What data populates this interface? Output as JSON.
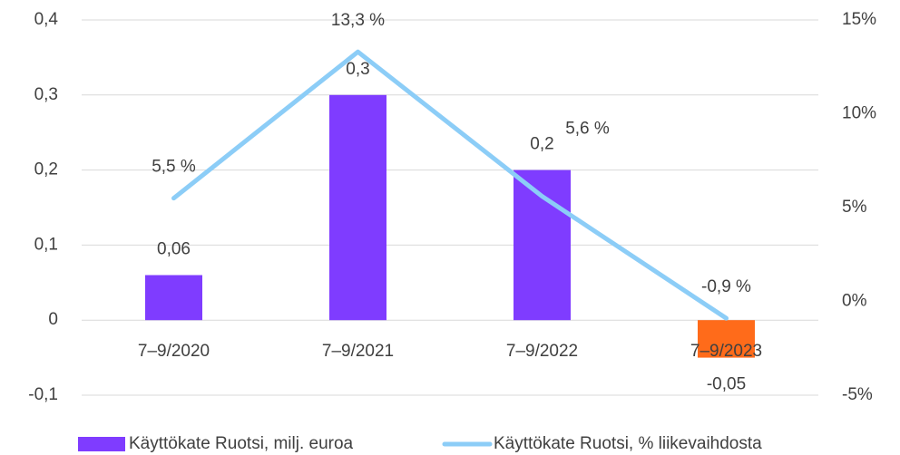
{
  "chart_data": {
    "type": "bar_line",
    "categories": [
      "7–9/2020",
      "7–9/2021",
      "7–9/2022",
      "7–9/2023"
    ],
    "series": [
      {
        "name": "Käyttökate Ruotsi, milj. euroa",
        "type": "bar",
        "color": "#7f3cff",
        "colors": [
          "#7f3cff",
          "#7f3cff",
          "#7f3cff",
          "#ff6b1a"
        ],
        "values": [
          0.06,
          0.3,
          0.2,
          -0.05
        ],
        "value_labels": [
          "0,06",
          "0,3",
          "0,2",
          "-0,05"
        ]
      },
      {
        "name": "Käyttökate Ruotsi, % liikevaihdosta",
        "type": "line",
        "axis": "y2",
        "color": "#8ccdf7",
        "values": [
          5.5,
          13.3,
          5.6,
          -0.9
        ],
        "value_labels": [
          "5,5 %",
          "13,3 %",
          "5,6 %",
          "-0,9 %"
        ]
      }
    ],
    "ylim": [
      -0.1,
      0.4
    ],
    "yticks": [
      {
        "value": -0.1,
        "label": "-0,1"
      },
      0,
      {
        "value": 0.1,
        "label": "0,1"
      },
      {
        "value": 0.2,
        "label": "0,2"
      },
      {
        "value": 0.3,
        "label": "0,3"
      },
      {
        "value": 0.4,
        "label": "0,4"
      }
    ],
    "y2lim": [
      -5,
      15
    ],
    "y2ticks": [
      {
        "value": -5,
        "label": "-5%"
      },
      {
        "value": 0,
        "label": "0%"
      },
      {
        "value": 5,
        "label": "5%"
      },
      {
        "value": 10,
        "label": "10%"
      },
      {
        "value": 15,
        "label": "15%"
      }
    ],
    "grid": true,
    "legend": "bottom"
  }
}
